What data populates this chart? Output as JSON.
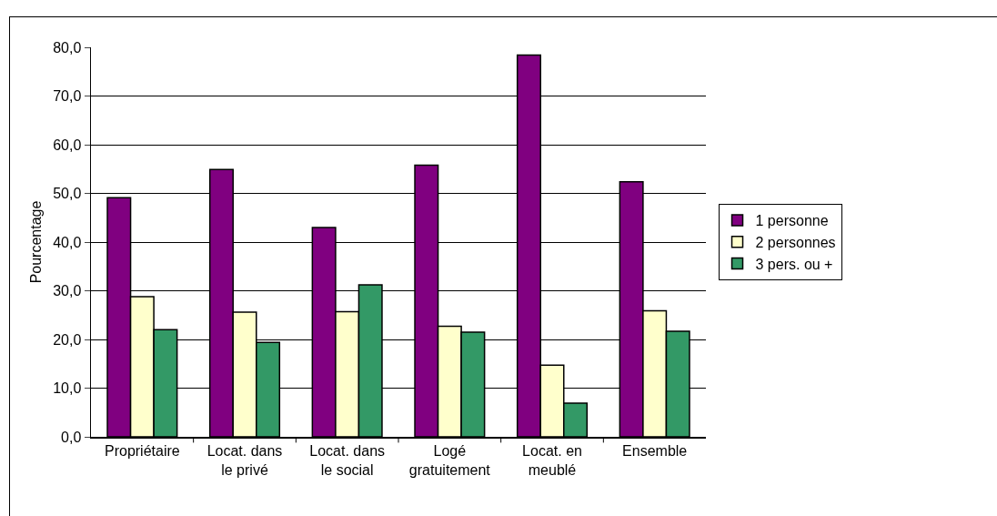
{
  "chart_data": {
    "type": "bar",
    "ylabel": "Pourcentage",
    "categories": [
      "Propriétaire",
      "Locat. dans\nle privé",
      "Locat. dans\nle social",
      "Logé\ngratuitement",
      "Locat. en\nmeublé",
      "Ensemble"
    ],
    "series": [
      {
        "name": "1 personne",
        "color": "#800080",
        "values": [
          49.1,
          54.9,
          43.0,
          55.8,
          78.4,
          52.4
        ]
      },
      {
        "name": "2 personnes",
        "color": "#ffffcc",
        "values": [
          28.8,
          25.6,
          25.7,
          22.7,
          14.7,
          25.9
        ]
      },
      {
        "name": "3 pers. ou +",
        "color": "#339966",
        "values": [
          22.0,
          19.4,
          31.2,
          21.5,
          6.9,
          21.7
        ]
      }
    ],
    "ylim": [
      0,
      80
    ],
    "yticks": [
      {
        "value": 0,
        "label": "0,0"
      },
      {
        "value": 10,
        "label": "10,0"
      },
      {
        "value": 20,
        "label": "20,0"
      },
      {
        "value": 30,
        "label": "30,0"
      },
      {
        "value": 40,
        "label": "40,0"
      },
      {
        "value": 50,
        "label": "50,0"
      },
      {
        "value": 60,
        "label": "60,0"
      },
      {
        "value": 70,
        "label": "70,0"
      },
      {
        "value": 80,
        "label": "80,0"
      }
    ],
    "grid": "y",
    "legend": "right"
  }
}
